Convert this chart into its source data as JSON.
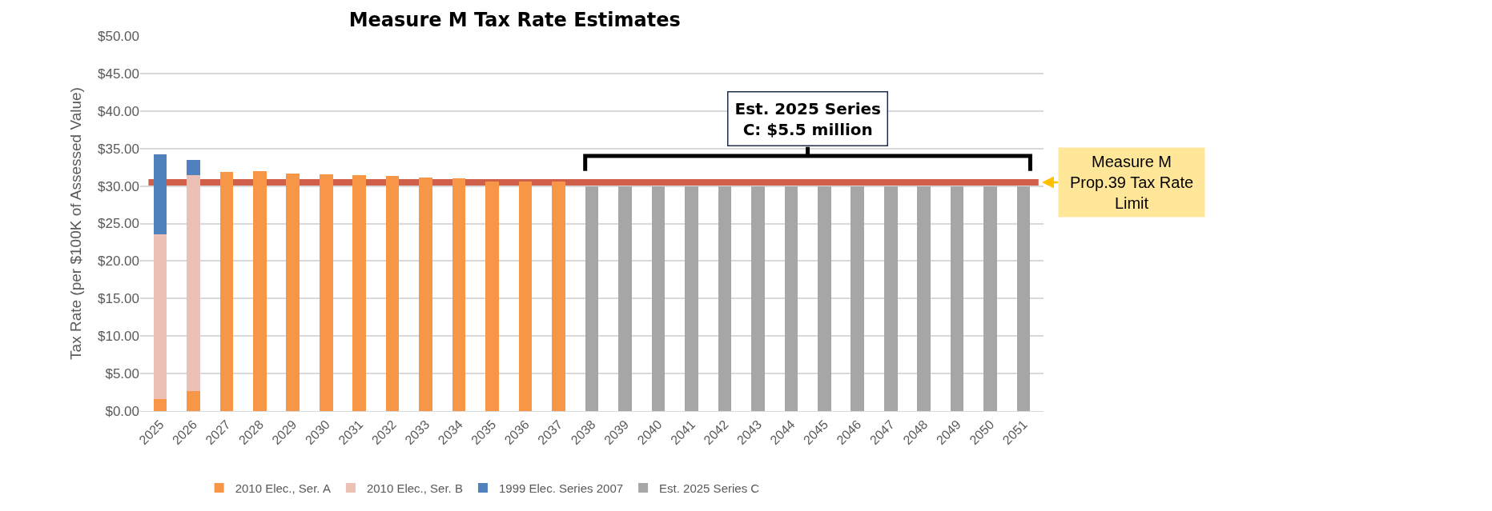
{
  "chart_data": {
    "type": "bar",
    "title": "Measure M Tax Rate Estimates",
    "ylabel": "Tax Rate (per $100K of Assessed Value)",
    "categories": [
      "2025",
      "2026",
      "2027",
      "2028",
      "2029",
      "2030",
      "2031",
      "2032",
      "2033",
      "2034",
      "2035",
      "2036",
      "2037",
      "2038",
      "2039",
      "2040",
      "2041",
      "2042",
      "2043",
      "2044",
      "2045",
      "2046",
      "2047",
      "2048",
      "2049",
      "2050",
      "2051"
    ],
    "stacked": true,
    "series": [
      {
        "name": "2010 Elec., Ser. A",
        "color": "#f79646",
        "values": [
          1.6,
          2.7,
          31.9,
          32.0,
          31.7,
          31.6,
          31.5,
          31.3,
          31.1,
          31.0,
          30.6,
          30.6,
          30.6,
          null,
          null,
          null,
          null,
          null,
          null,
          null,
          null,
          null,
          null,
          null,
          null,
          null,
          null
        ]
      },
      {
        "name": "2010 Elec., Ser. B",
        "color": "#ecc0b4",
        "values": [
          22.0,
          28.8,
          null,
          null,
          null,
          null,
          null,
          null,
          null,
          null,
          null,
          null,
          null,
          null,
          null,
          null,
          null,
          null,
          null,
          null,
          null,
          null,
          null,
          null,
          null,
          null,
          null
        ]
      },
      {
        "name": "1999 Elec. Series 2007",
        "color": "#4f81bd",
        "values": [
          10.6,
          2.0,
          null,
          null,
          null,
          null,
          null,
          null,
          null,
          null,
          null,
          null,
          null,
          null,
          null,
          null,
          null,
          null,
          null,
          null,
          null,
          null,
          null,
          null,
          null,
          null,
          null
        ]
      },
      {
        "name": "Est. 2025 Series C",
        "color": "#a6a6a6",
        "values": [
          null,
          null,
          null,
          null,
          null,
          null,
          null,
          null,
          null,
          null,
          null,
          null,
          null,
          30.0,
          30.0,
          30.0,
          30.0,
          30.0,
          30.0,
          30.0,
          30.0,
          30.0,
          30.0,
          30.0,
          30.0,
          30.0,
          30.0
        ]
      }
    ],
    "ylim": [
      0,
      50
    ],
    "yticks": [
      {
        "value": 0,
        "label": "$0.00"
      },
      {
        "value": 5,
        "label": "$5.00"
      },
      {
        "value": 10,
        "label": "$10.00"
      },
      {
        "value": 15,
        "label": "$15.00"
      },
      {
        "value": 20,
        "label": "$20.00"
      },
      {
        "value": 25,
        "label": "$25.00"
      },
      {
        "value": 30,
        "label": "$30.00"
      },
      {
        "value": 35,
        "label": "$35.00"
      },
      {
        "value": 40,
        "label": "$40.00"
      },
      {
        "value": 45,
        "label": "$45.00"
      },
      {
        "value": 50,
        "label": "$50.00"
      }
    ],
    "grid": "y",
    "legend": "bottom",
    "ref_lines": [
      {
        "axis": "y",
        "value": 30.5,
        "label": "Measure M Prop.39 Tax Rate Limit",
        "color": "#d0604a"
      }
    ],
    "annotations": [
      "Est. 2025 Series C: $5.5 million"
    ]
  }
}
